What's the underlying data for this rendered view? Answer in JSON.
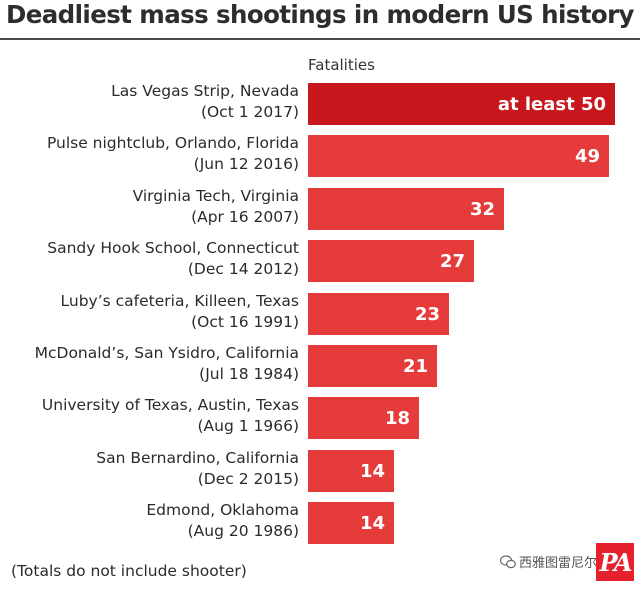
{
  "title": "Deadliest mass shootings in modern US history",
  "axis_label": "Fatalities",
  "footnote": "(Totals do not include shooter)",
  "watermark": "西雅图雷尼尔",
  "logo": "PA",
  "colors": {
    "bar": "#e63b3b",
    "highlight_bar": "#c8161d"
  },
  "chart_data": {
    "type": "bar",
    "orientation": "horizontal",
    "categories": [
      "Las Vegas Strip, Nevada (Oct 1 2017)",
      "Pulse nightclub, Orlando, Florida (Jun 12 2016)",
      "Virginia Tech, Virginia (Apr 16 2007)",
      "Sandy Hook School, Connecticut (Dec 14 2012)",
      "Luby’s cafeteria, Killeen, Texas (Oct 16 1991)",
      "McDonald’s, San Ysidro, California (Jul 18 1984)",
      "University of Texas, Austin, Texas (Aug 1 1966)",
      "San Bernardino, California (Dec 2 2015)",
      "Edmond, Oklahoma (Aug 20 1986)"
    ],
    "values": [
      50,
      49,
      32,
      27,
      23,
      21,
      18,
      14,
      14
    ],
    "value_labels": [
      "at least 50",
      "49",
      "32",
      "27",
      "23",
      "21",
      "18",
      "14",
      "14"
    ],
    "xlabel": "Fatalities",
    "xlim": [
      0,
      50
    ],
    "grid": false,
    "legend": "none"
  },
  "rows": [
    {
      "place": "Las Vegas Strip, Nevada",
      "date": "(Oct 1 2017)"
    },
    {
      "place": "Pulse nightclub, Orlando, Florida",
      "date": "(Jun 12 2016)"
    },
    {
      "place": "Virginia Tech, Virginia",
      "date": "(Apr 16 2007)"
    },
    {
      "place": "Sandy Hook School, Connecticut",
      "date": "(Dec 14 2012)"
    },
    {
      "place": "Luby’s cafeteria, Killeen, Texas",
      "date": "(Oct 16 1991)"
    },
    {
      "place": "McDonald’s, San Ysidro, California",
      "date": "(Jul 18 1984)"
    },
    {
      "place": "University of Texas, Austin, Texas",
      "date": "(Aug 1 1966)"
    },
    {
      "place": "San Bernardino, California",
      "date": "(Dec 2 2015)"
    },
    {
      "place": "Edmond, Oklahoma",
      "date": "(Aug 20 1986)"
    }
  ]
}
